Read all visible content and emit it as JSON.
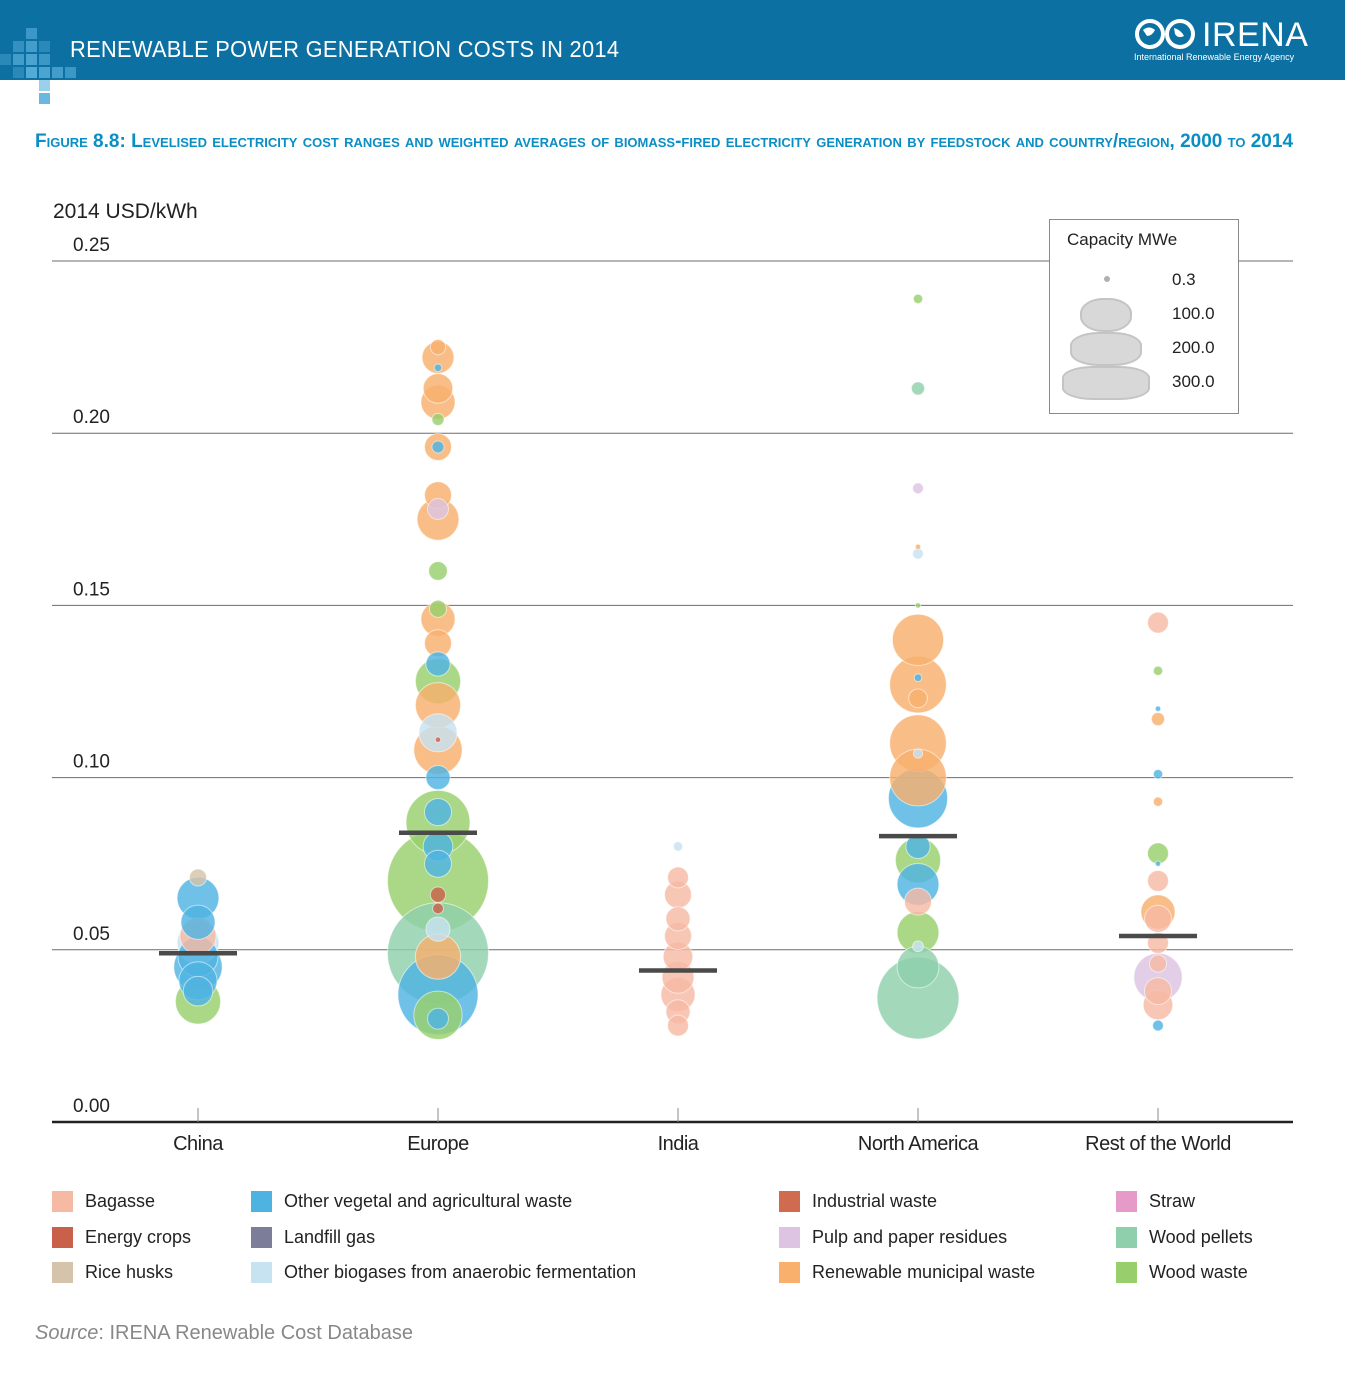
{
  "header": {
    "title": "RENEWABLE POWER GENERATION COSTS IN 2014",
    "logo_text": "IRENA",
    "logo_subtitle": "International Renewable Energy Agency",
    "bar_color": "#0d70a2"
  },
  "figure_title": "Figure 8.8: Levelised electricity cost ranges and weighted averages of biomass-fired electricity generation by feedstock and country/region, 2000 to 2014",
  "source": {
    "label": "Source",
    "text": ": IRENA Renewable Cost Database"
  },
  "size_legend": {
    "title": "Capacity MWe",
    "items": [
      {
        "label": "0.3",
        "mwe": 0.3
      },
      {
        "label": "100.0",
        "mwe": 100
      },
      {
        "label": "200.0",
        "mwe": 200
      },
      {
        "label": "300.0",
        "mwe": 300
      }
    ]
  },
  "chart_data": {
    "type": "scatter",
    "title": "Levelised electricity cost ranges and weighted averages of biomass-fired electricity generation by feedstock and country/region, 2000 to 2014",
    "ylabel": "2014 USD/kWh",
    "xlabel": "",
    "ylim": [
      0,
      0.25
    ],
    "yticks": [
      0.0,
      0.05,
      0.1,
      0.15,
      0.2,
      0.25
    ],
    "ytick_labels": [
      "0.00",
      "0.05",
      "0.10",
      "0.15",
      "0.20",
      "0.25"
    ],
    "grid": true,
    "categories": [
      "China",
      "Europe",
      "India",
      "North America",
      "Rest of the World"
    ],
    "weighted_averages": [
      0.049,
      0.084,
      0.044,
      0.083,
      0.054
    ],
    "feedstocks": [
      {
        "name": "Bagasse",
        "color": "#f6b9a4"
      },
      {
        "name": "Energy crops",
        "color": "#c9614a"
      },
      {
        "name": "Rice husks",
        "color": "#d6c3ab"
      },
      {
        "name": "Other vegetal and agricultural waste",
        "color": "#4fb3e2"
      },
      {
        "name": "Landfill gas",
        "color": "#7c7d99"
      },
      {
        "name": "Other biogases from anaerobic fermentation",
        "color": "#c7e2f1"
      },
      {
        "name": "Industrial waste",
        "color": "#d06b50"
      },
      {
        "name": "Pulp and paper residues",
        "color": "#dcc4e2"
      },
      {
        "name": "Renewable municipal waste",
        "color": "#f8b06c"
      },
      {
        "name": "Straw",
        "color": "#e59ac8"
      },
      {
        "name": "Wood pellets",
        "color": "#8fcfac"
      },
      {
        "name": "Wood waste",
        "color": "#98cf6c"
      }
    ],
    "points": [
      {
        "region": "China",
        "feedstock": "Rice husks",
        "y": 0.071,
        "mwe": 10
      },
      {
        "region": "China",
        "feedstock": "Other vegetal and agricultural waste",
        "y": 0.065,
        "mwe": 60
      },
      {
        "region": "China",
        "feedstock": "Other vegetal and agricultural waste",
        "y": 0.058,
        "mwe": 40
      },
      {
        "region": "China",
        "feedstock": "Bagasse",
        "y": 0.054,
        "mwe": 45
      },
      {
        "region": "China",
        "feedstock": "Other biogases from anaerobic fermentation",
        "y": 0.052,
        "mwe": 60
      },
      {
        "region": "China",
        "feedstock": "Other vegetal and agricultural waste",
        "y": 0.048,
        "mwe": 55
      },
      {
        "region": "China",
        "feedstock": "Other vegetal and agricultural waste",
        "y": 0.045,
        "mwe": 80
      },
      {
        "region": "China",
        "feedstock": "Other vegetal and agricultural waste",
        "y": 0.041,
        "mwe": 50
      },
      {
        "region": "China",
        "feedstock": "Wood waste",
        "y": 0.035,
        "mwe": 70
      },
      {
        "region": "China",
        "feedstock": "Other vegetal and agricultural waste",
        "y": 0.038,
        "mwe": 30
      },
      {
        "region": "Europe",
        "feedstock": "Renewable municipal waste",
        "y": 0.225,
        "mwe": 8
      },
      {
        "region": "Europe",
        "feedstock": "Renewable municipal waste",
        "y": 0.222,
        "mwe": 35
      },
      {
        "region": "Europe",
        "feedstock": "Other vegetal and agricultural waste",
        "y": 0.219,
        "mwe": 2
      },
      {
        "region": "Europe",
        "feedstock": "Renewable municipal waste",
        "y": 0.213,
        "mwe": 30
      },
      {
        "region": "Europe",
        "feedstock": "Renewable municipal waste",
        "y": 0.209,
        "mwe": 40
      },
      {
        "region": "Europe",
        "feedstock": "Wood waste",
        "y": 0.204,
        "mwe": 5
      },
      {
        "region": "Europe",
        "feedstock": "Renewable municipal waste",
        "y": 0.196,
        "mwe": 25
      },
      {
        "region": "Europe",
        "feedstock": "Other vegetal and agricultural waste",
        "y": 0.196,
        "mwe": 5
      },
      {
        "region": "Europe",
        "feedstock": "Renewable municipal waste",
        "y": 0.182,
        "mwe": 25
      },
      {
        "region": "Europe",
        "feedstock": "Pulp and paper residues",
        "y": 0.178,
        "mwe": 15
      },
      {
        "region": "Europe",
        "feedstock": "Renewable municipal waste",
        "y": 0.175,
        "mwe": 60
      },
      {
        "region": "Europe",
        "feedstock": "Wood waste",
        "y": 0.16,
        "mwe": 12
      },
      {
        "region": "Europe",
        "feedstock": "Wood waste",
        "y": 0.149,
        "mwe": 10
      },
      {
        "region": "Europe",
        "feedstock": "Renewable municipal waste",
        "y": 0.146,
        "mwe": 40
      },
      {
        "region": "Europe",
        "feedstock": "Renewable municipal waste",
        "y": 0.139,
        "mwe": 25
      },
      {
        "region": "Europe",
        "feedstock": "Other vegetal and agricultural waste",
        "y": 0.133,
        "mwe": 20
      },
      {
        "region": "Europe",
        "feedstock": "Wood waste",
        "y": 0.128,
        "mwe": 70
      },
      {
        "region": "Europe",
        "feedstock": "Renewable municipal waste",
        "y": 0.121,
        "mwe": 70
      },
      {
        "region": "Europe",
        "feedstock": "Other biogases from anaerobic fermentation",
        "y": 0.113,
        "mwe": 50
      },
      {
        "region": "Europe",
        "feedstock": "Energy crops",
        "y": 0.111,
        "mwe": 1
      },
      {
        "region": "Europe",
        "feedstock": "Renewable municipal waste",
        "y": 0.108,
        "mwe": 80
      },
      {
        "region": "Europe",
        "feedstock": "Other vegetal and agricultural waste",
        "y": 0.1,
        "mwe": 20
      },
      {
        "region": "Europe",
        "feedstock": "Other vegetal and agricultural waste",
        "y": 0.09,
        "mwe": 25
      },
      {
        "region": "Europe",
        "feedstock": "Wood waste",
        "y": 0.087,
        "mwe": 140
      },
      {
        "region": "Europe",
        "feedstock": "Other vegetal and agricultural waste",
        "y": 0.08,
        "mwe": 30
      },
      {
        "region": "Europe",
        "feedstock": "Wood waste",
        "y": 0.07,
        "mwe": 350
      },
      {
        "region": "Europe",
        "feedstock": "Other vegetal and agricultural waste",
        "y": 0.075,
        "mwe": 25
      },
      {
        "region": "Europe",
        "feedstock": "Energy crops",
        "y": 0.066,
        "mwe": 8
      },
      {
        "region": "Europe",
        "feedstock": "Energy crops",
        "y": 0.062,
        "mwe": 4
      },
      {
        "region": "Europe",
        "feedstock": "Other biogases from anaerobic fermentation",
        "y": 0.056,
        "mwe": 20
      },
      {
        "region": "Europe",
        "feedstock": "Wood pellets",
        "y": 0.049,
        "mwe": 350
      },
      {
        "region": "Europe",
        "feedstock": "Renewable municipal waste",
        "y": 0.048,
        "mwe": 70
      },
      {
        "region": "Europe",
        "feedstock": "Other vegetal and agricultural waste",
        "y": 0.037,
        "mwe": 220
      },
      {
        "region": "Europe",
        "feedstock": "Wood waste",
        "y": 0.031,
        "mwe": 80
      },
      {
        "region": "Europe",
        "feedstock": "Other vegetal and agricultural waste",
        "y": 0.03,
        "mwe": 15
      },
      {
        "region": "India",
        "feedstock": "Other biogases from anaerobic fermentation",
        "y": 0.08,
        "mwe": 3
      },
      {
        "region": "India",
        "feedstock": "Bagasse",
        "y": 0.071,
        "mwe": 15
      },
      {
        "region": "India",
        "feedstock": "Bagasse",
        "y": 0.066,
        "mwe": 25
      },
      {
        "region": "India",
        "feedstock": "Bagasse",
        "y": 0.059,
        "mwe": 20
      },
      {
        "region": "India",
        "feedstock": "Bagasse",
        "y": 0.054,
        "mwe": 25
      },
      {
        "region": "India",
        "feedstock": "Bagasse",
        "y": 0.048,
        "mwe": 30
      },
      {
        "region": "India",
        "feedstock": "Bagasse",
        "y": 0.042,
        "mwe": 35
      },
      {
        "region": "India",
        "feedstock": "Bagasse",
        "y": 0.037,
        "mwe": 40
      },
      {
        "region": "India",
        "feedstock": "Bagasse",
        "y": 0.032,
        "mwe": 20
      },
      {
        "region": "India",
        "feedstock": "Bagasse",
        "y": 0.028,
        "mwe": 15
      },
      {
        "region": "North America",
        "feedstock": "Wood waste",
        "y": 0.239,
        "mwe": 3
      },
      {
        "region": "North America",
        "feedstock": "Wood pellets",
        "y": 0.213,
        "mwe": 6
      },
      {
        "region": "North America",
        "feedstock": "Pulp and paper residues",
        "y": 0.184,
        "mwe": 4
      },
      {
        "region": "North America",
        "feedstock": "Renewable municipal waste",
        "y": 0.167,
        "mwe": 1
      },
      {
        "region": "North America",
        "feedstock": "Other biogases from anaerobic fermentation",
        "y": 0.165,
        "mwe": 4
      },
      {
        "region": "North America",
        "feedstock": "Wood waste",
        "y": 0.15,
        "mwe": 1
      },
      {
        "region": "North America",
        "feedstock": "Renewable municipal waste",
        "y": 0.14,
        "mwe": 90
      },
      {
        "region": "North America",
        "feedstock": "Renewable municipal waste",
        "y": 0.127,
        "mwe": 110
      },
      {
        "region": "North America",
        "feedstock": "Other vegetal and agricultural waste",
        "y": 0.129,
        "mwe": 2
      },
      {
        "region": "North America",
        "feedstock": "Renewable municipal waste",
        "y": 0.123,
        "mwe": 12
      },
      {
        "region": "North America",
        "feedstock": "Renewable municipal waste",
        "y": 0.11,
        "mwe": 110
      },
      {
        "region": "North America",
        "feedstock": "Other biogases from anaerobic fermentation",
        "y": 0.107,
        "mwe": 3
      },
      {
        "region": "North America",
        "feedstock": "Renewable municipal waste",
        "y": 0.1,
        "mwe": 110
      },
      {
        "region": "North America",
        "feedstock": "Other vegetal and agricultural waste",
        "y": 0.094,
        "mwe": 120
      },
      {
        "region": "North America",
        "feedstock": "Other vegetal and agricultural waste",
        "y": 0.08,
        "mwe": 20
      },
      {
        "region": "North America",
        "feedstock": "Wood waste",
        "y": 0.076,
        "mwe": 70
      },
      {
        "region": "North America",
        "feedstock": "Other vegetal and agricultural waste",
        "y": 0.069,
        "mwe": 60
      },
      {
        "region": "North America",
        "feedstock": "Bagasse",
        "y": 0.064,
        "mwe": 25
      },
      {
        "region": "North America",
        "feedstock": "Wood waste",
        "y": 0.055,
        "mwe": 60
      },
      {
        "region": "North America",
        "feedstock": "Other biogases from anaerobic fermentation",
        "y": 0.051,
        "mwe": 4
      },
      {
        "region": "North America",
        "feedstock": "Wood pellets",
        "y": 0.045,
        "mwe": 60
      },
      {
        "region": "North America",
        "feedstock": "Wood pellets",
        "y": 0.036,
        "mwe": 230
      },
      {
        "region": "Rest of the World",
        "feedstock": "Bagasse",
        "y": 0.145,
        "mwe": 15
      },
      {
        "region": "Rest of the World",
        "feedstock": "Wood waste",
        "y": 0.131,
        "mwe": 3
      },
      {
        "region": "Rest of the World",
        "feedstock": "Other vegetal and agricultural waste",
        "y": 0.12,
        "mwe": 1
      },
      {
        "region": "Rest of the World",
        "feedstock": "Renewable municipal waste",
        "y": 0.117,
        "mwe": 6
      },
      {
        "region": "Rest of the World",
        "feedstock": "Other vegetal and agricultural waste",
        "y": 0.101,
        "mwe": 3
      },
      {
        "region": "Rest of the World",
        "feedstock": "Renewable municipal waste",
        "y": 0.093,
        "mwe": 3
      },
      {
        "region": "Rest of the World",
        "feedstock": "Wood waste",
        "y": 0.078,
        "mwe": 15
      },
      {
        "region": "Rest of the World",
        "feedstock": "Other vegetal and agricultural waste",
        "y": 0.075,
        "mwe": 1
      },
      {
        "region": "Rest of the World",
        "feedstock": "Bagasse",
        "y": 0.07,
        "mwe": 15
      },
      {
        "region": "Rest of the World",
        "feedstock": "Renewable municipal waste",
        "y": 0.061,
        "mwe": 40
      },
      {
        "region": "Rest of the World",
        "feedstock": "Bagasse",
        "y": 0.059,
        "mwe": 25
      },
      {
        "region": "Rest of the World",
        "feedstock": "Bagasse",
        "y": 0.052,
        "mwe": 15
      },
      {
        "region": "Rest of the World",
        "feedstock": "Bagasse",
        "y": 0.046,
        "mwe": 10
      },
      {
        "region": "Rest of the World",
        "feedstock": "Pulp and paper residues",
        "y": 0.042,
        "mwe": 80
      },
      {
        "region": "Rest of the World",
        "feedstock": "Bagasse",
        "y": 0.038,
        "mwe": 25
      },
      {
        "region": "Rest of the World",
        "feedstock": "Bagasse",
        "y": 0.034,
        "mwe": 30
      },
      {
        "region": "Rest of the World",
        "feedstock": "Other vegetal and agricultural waste",
        "y": 0.028,
        "mwe": 4
      }
    ]
  }
}
